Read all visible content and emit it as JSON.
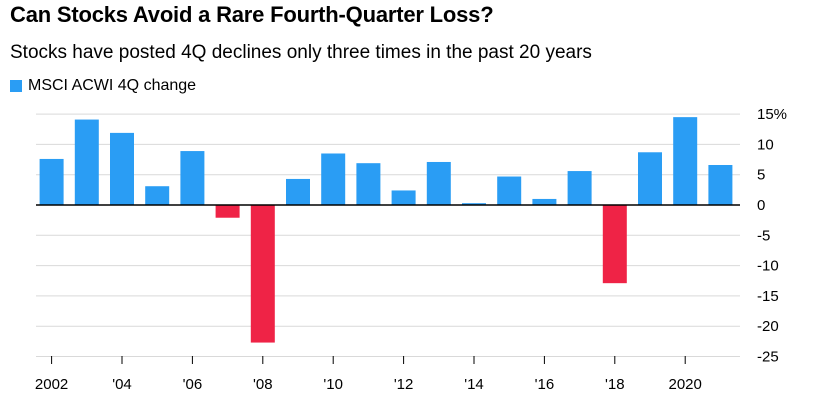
{
  "title": "Can Stocks Avoid a Rare Fourth-Quarter Loss?",
  "subtitle": "Stocks have posted 4Q declines only three times in the past 20 years",
  "colors": {
    "positive": "#2a9df4",
    "negative": "#ef2346",
    "grid": "#d9d9d9",
    "axis": "#000000"
  },
  "chart_data": {
    "type": "bar",
    "title": "Can Stocks Avoid a Rare Fourth-Quarter Loss?",
    "subtitle": "Stocks have posted 4Q declines only three times in the past 20 years",
    "legend": [
      "MSCI ACWI 4Q change"
    ],
    "legend_position": "top-left",
    "xlabel": "",
    "ylabel": "",
    "ylim": [
      -25,
      15
    ],
    "yticks": [
      15,
      10,
      5,
      0,
      -5,
      -10,
      -15,
      -20,
      -25
    ],
    "ytick_labels": [
      "15%",
      "10",
      "5",
      "0",
      "-5",
      "-10",
      "-15",
      "-20",
      "-25"
    ],
    "categories": [
      "2002",
      "2003",
      "2004",
      "2005",
      "2006",
      "2007",
      "2008",
      "2009",
      "2010",
      "2011",
      "2012",
      "2013",
      "2014",
      "2015",
      "2016",
      "2017",
      "2018",
      "2019",
      "2020",
      "2021"
    ],
    "values": [
      7.6,
      14.1,
      11.9,
      3.1,
      8.9,
      -2.1,
      -22.7,
      4.3,
      8.5,
      6.9,
      2.4,
      7.1,
      0.3,
      4.7,
      1.0,
      5.6,
      -12.9,
      8.7,
      14.5,
      6.6
    ],
    "xtick_labels": [
      {
        "category": "2002",
        "label": "2002"
      },
      {
        "category": "2004",
        "label": "'04"
      },
      {
        "category": "2006",
        "label": "'06"
      },
      {
        "category": "2008",
        "label": "'08"
      },
      {
        "category": "2010",
        "label": "'10"
      },
      {
        "category": "2012",
        "label": "'12"
      },
      {
        "category": "2014",
        "label": "'14"
      },
      {
        "category": "2016",
        "label": "'16"
      },
      {
        "category": "2018",
        "label": "'18"
      },
      {
        "category": "2020",
        "label": "2020"
      }
    ],
    "grid": true
  }
}
